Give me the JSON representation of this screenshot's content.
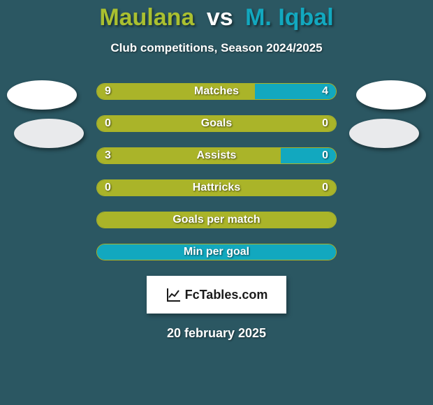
{
  "header": {
    "player1": "Maulana",
    "vs": "vs",
    "player2": "M. Iqbal",
    "subtitle": "Club competitions, Season 2024/2025",
    "colors": {
      "p1": "#aac030",
      "p2": "#12a8bf",
      "vs": "#ffffff"
    }
  },
  "chart": {
    "bar_track_width": 344,
    "border_color": "#aab429",
    "left_fill": "#aab429",
    "right_fill": "#12a8bf",
    "background": "#2b5762",
    "label_color": "#ffffff",
    "label_fontsize": 16,
    "rows": [
      {
        "label": "Matches",
        "left": "9",
        "right": "4",
        "left_pct": 66,
        "right_pct": 34
      },
      {
        "label": "Goals",
        "left": "0",
        "right": "0",
        "left_pct": 100,
        "right_pct": 0
      },
      {
        "label": "Assists",
        "left": "3",
        "right": "0",
        "left_pct": 77,
        "right_pct": 23
      },
      {
        "label": "Hattricks",
        "left": "0",
        "right": "0",
        "left_pct": 100,
        "right_pct": 0
      },
      {
        "label": "Goals per match",
        "left": "",
        "right": "",
        "left_pct": 100,
        "right_pct": 0
      },
      {
        "label": "Min per goal",
        "left": "",
        "right": "",
        "left_pct": 0,
        "right_pct": 100
      }
    ]
  },
  "avatars": {
    "left_top_color": "#ffffff",
    "left_bottom_color": "#e9eaec",
    "right_top_color": "#ffffff",
    "right_bottom_color": "#e9eaec"
  },
  "brand": {
    "text": "FcTables.com"
  },
  "footer": {
    "date": "20 february 2025"
  }
}
